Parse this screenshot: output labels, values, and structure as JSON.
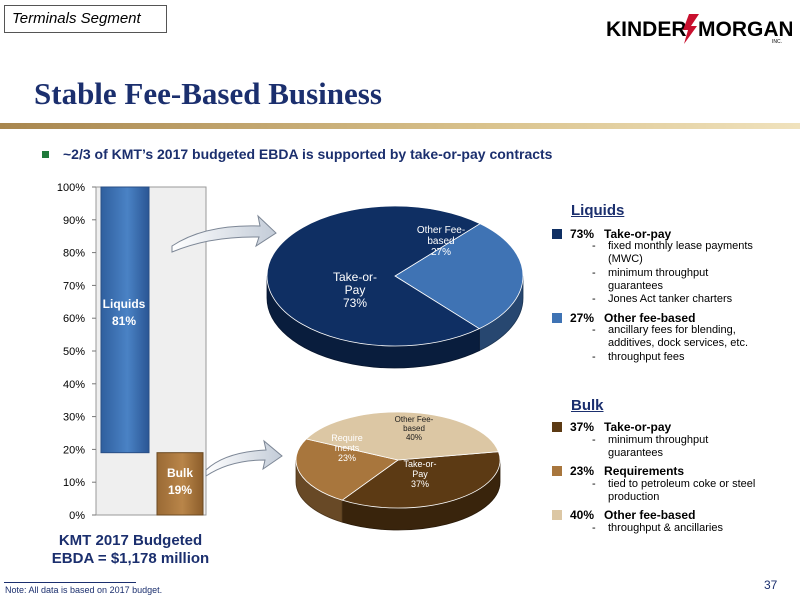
{
  "segment_tag": "Terminals Segment",
  "logo": {
    "text_left": "KINDER",
    "text_right": "MORGAN",
    "suffix": "INC."
  },
  "title": "Stable Fee-Based Business",
  "bullet": "~2/3 of KMT’s 2017 budgeted EBDA is supported by take-or-pay contracts",
  "colors": {
    "navy": "#0f2f63",
    "medium_blue": "#3f73b4",
    "brown": "#5c3a14",
    "light_brown": "#a8763d",
    "tan": "#dcc7a4",
    "title": "#1b2f6e"
  },
  "chart_data": [
    {
      "type": "bar",
      "categories": [
        "Liquids",
        "Bulk"
      ],
      "values": [
        81,
        19
      ],
      "data_labels": [
        "Liquids 81%",
        "Bulk 19%"
      ],
      "stacked": true,
      "ylim": [
        0,
        100
      ],
      "yticks": [
        "0%",
        "10%",
        "20%",
        "30%",
        "40%",
        "50%",
        "60%",
        "70%",
        "80%",
        "90%",
        "100%"
      ]
    },
    {
      "type": "pie",
      "labels": [
        "Take-or-Pay",
        "Other Fee-based"
      ],
      "values": [
        73,
        27
      ],
      "data_labels": [
        "73%",
        "27%"
      ]
    },
    {
      "type": "pie",
      "labels": [
        "Take-or-Pay",
        "Requirements",
        "Other Fee-based"
      ],
      "values": [
        37,
        23,
        40
      ],
      "data_labels": [
        "37%",
        "23%",
        "40%"
      ]
    }
  ],
  "legend": {
    "liquids": {
      "heading": "Liquids",
      "items": [
        {
          "pct": "73%",
          "label": "Take-or-pay",
          "subs": [
            "fixed monthly lease payments (MWC)",
            "minimum throughput guarantees",
            "Jones Act tanker charters"
          ]
        },
        {
          "pct": "27%",
          "label": "Other fee-based",
          "subs": [
            "ancillary fees for blending, additives, dock services, etc.",
            "throughput fees"
          ]
        }
      ]
    },
    "bulk": {
      "heading": "Bulk",
      "items": [
        {
          "pct": "37%",
          "label": "Take-or-pay",
          "subs": [
            "minimum throughput guarantees"
          ]
        },
        {
          "pct": "23%",
          "label": "Requirements",
          "subs": [
            "tied to petroleum coke or steel production"
          ]
        },
        {
          "pct": "40%",
          "label": "Other fee-based",
          "subs": [
            "throughput & ancillaries"
          ]
        }
      ]
    }
  },
  "total": {
    "line1": "KMT 2017 Budgeted",
    "line2": "EBDA = $1,178 million"
  },
  "note": "Note: All data is based on 2017 budget.",
  "page_number": "37"
}
